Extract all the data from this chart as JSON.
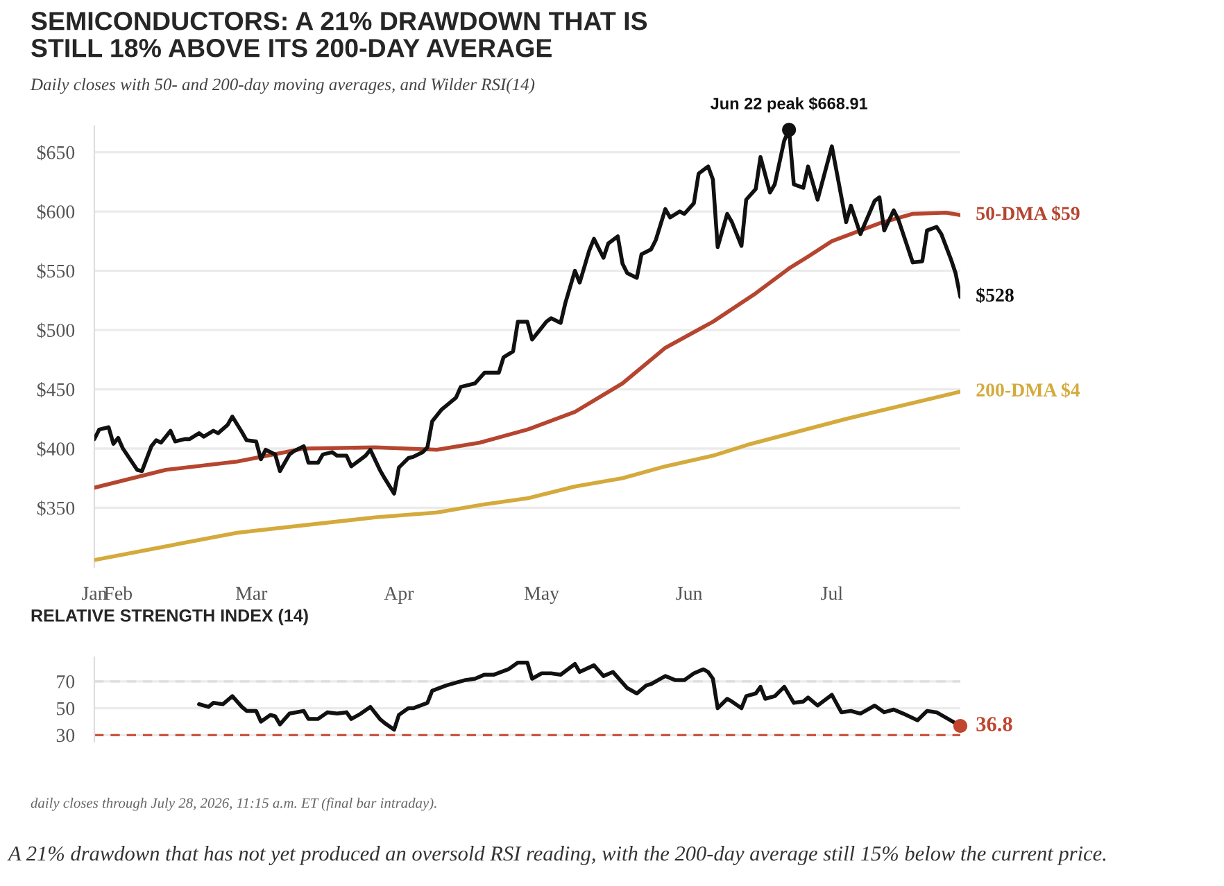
{
  "chart_data": [
    {
      "type": "line",
      "title": "SEMICONDUCTORS: A 21% DRAWDOWN THAT IS\nSTILL 18% ABOVE ITS 200-DAY AVERAGE",
      "subtitle": "Daily closes with 50- and 200-day moving averages, and Wilder RSI(14)",
      "xlim": [
        "2026-01-27",
        "2026-07-28"
      ],
      "xticks": [
        {
          "value": "2026-01-27",
          "label": "Jan"
        },
        {
          "value": "2026-02-01",
          "label": "Feb"
        },
        {
          "value": "2026-03-01",
          "label": "Mar"
        },
        {
          "value": "2026-04-01",
          "label": "Apr"
        },
        {
          "value": "2026-05-01",
          "label": "May"
        },
        {
          "value": "2026-06-01",
          "label": "Jun"
        },
        {
          "value": "2026-07-01",
          "label": "Jul"
        }
      ],
      "ylim": [
        300,
        672
      ],
      "yticks": [
        {
          "value": 350,
          "label": "$350"
        },
        {
          "value": 400,
          "label": "$400"
        },
        {
          "value": 450,
          "label": "$450"
        },
        {
          "value": 500,
          "label": "$500"
        },
        {
          "value": 550,
          "label": "$550"
        },
        {
          "value": 600,
          "label": "$600"
        },
        {
          "value": 650,
          "label": "$650"
        }
      ],
      "grid": "y",
      "legend": false,
      "line_style": "solid",
      "marker": "none",
      "series": [
        {
          "name": "200-DMA $4",
          "color": "#d4aa3c",
          "x": [
            "2026-01-27",
            "2026-02-26",
            "2026-03-27",
            "2026-04-09",
            "2026-04-19",
            "2026-04-28",
            "2026-05-08",
            "2026-05-18",
            "2026-05-27",
            "2026-06-06",
            "2026-06-14",
            "2026-07-04",
            "2026-07-28"
          ],
          "values": [
            306,
            329,
            342,
            346,
            353,
            358,
            368,
            375,
            385,
            394,
            404,
            425,
            448
          ]
        },
        {
          "name": "50-DMA $59",
          "color": "#b5452f",
          "x": [
            "2026-01-27",
            "2026-02-11",
            "2026-02-26",
            "2026-03-12",
            "2026-03-27",
            "2026-04-09",
            "2026-04-18",
            "2026-04-28",
            "2026-05-08",
            "2026-05-18",
            "2026-05-27",
            "2026-06-06",
            "2026-06-15",
            "2026-06-22",
            "2026-06-26",
            "2026-07-01",
            "2026-07-11",
            "2026-07-18",
            "2026-07-25",
            "2026-07-28"
          ],
          "values": [
            367,
            382,
            389,
            400,
            401,
            399,
            405,
            416,
            431,
            455,
            485,
            507,
            531,
            552,
            562,
            575,
            590,
            598,
            599,
            597
          ]
        },
        {
          "name": "$528",
          "color": "#111111",
          "x": [
            "2026-01-27",
            "2026-01-28",
            "2026-01-30",
            "2026-01-31",
            "2026-02-01",
            "2026-02-02",
            "2026-02-05",
            "2026-02-06",
            "2026-02-08",
            "2026-02-09",
            "2026-02-10",
            "2026-02-12",
            "2026-02-13",
            "2026-02-15",
            "2026-02-16",
            "2026-02-18",
            "2026-02-19",
            "2026-02-21",
            "2026-02-22",
            "2026-02-24",
            "2026-02-25",
            "2026-02-27",
            "2026-02-28",
            "2026-03-02",
            "2026-03-03",
            "2026-03-04",
            "2026-03-06",
            "2026-03-07",
            "2026-03-09",
            "2026-03-10",
            "2026-03-12",
            "2026-03-13",
            "2026-03-15",
            "2026-03-16",
            "2026-03-18",
            "2026-03-19",
            "2026-03-21",
            "2026-03-22",
            "2026-03-24",
            "2026-03-25",
            "2026-03-26",
            "2026-03-28",
            "2026-03-29",
            "2026-03-31",
            "2026-04-01",
            "2026-04-03",
            "2026-04-04",
            "2026-04-06",
            "2026-04-07",
            "2026-04-08",
            "2026-04-10",
            "2026-04-13",
            "2026-04-14",
            "2026-04-17",
            "2026-04-19",
            "2026-04-22",
            "2026-04-23",
            "2026-04-25",
            "2026-04-26",
            "2026-04-28",
            "2026-04-29",
            "2026-05-01",
            "2026-05-02",
            "2026-05-03",
            "2026-05-05",
            "2026-05-06",
            "2026-05-08",
            "2026-05-09",
            "2026-05-11",
            "2026-05-12",
            "2026-05-14",
            "2026-05-15",
            "2026-05-17",
            "2026-05-18",
            "2026-05-19",
            "2026-05-21",
            "2026-05-22",
            "2026-05-24",
            "2026-05-25",
            "2026-05-27",
            "2026-05-28",
            "2026-05-30",
            "2026-05-31",
            "2026-06-02",
            "2026-06-03",
            "2026-06-05",
            "2026-06-06",
            "2026-06-07",
            "2026-06-09",
            "2026-06-10",
            "2026-06-12",
            "2026-06-13",
            "2026-06-15",
            "2026-06-16",
            "2026-06-18",
            "2026-06-19",
            "2026-06-21",
            "2026-06-22",
            "2026-06-23",
            "2026-06-25",
            "2026-06-26",
            "2026-06-28",
            "2026-07-01",
            "2026-07-04",
            "2026-07-05",
            "2026-07-07",
            "2026-07-10",
            "2026-07-11",
            "2026-07-12",
            "2026-07-14",
            "2026-07-15",
            "2026-07-17",
            "2026-07-18",
            "2026-07-20",
            "2026-07-21",
            "2026-07-23",
            "2026-07-24",
            "2026-07-26",
            "2026-07-27",
            "2026-07-28"
          ],
          "values": [
            408,
            416,
            418,
            404,
            409,
            400,
            382,
            381,
            402,
            407,
            405,
            415,
            406,
            408,
            408,
            413,
            410,
            415,
            413,
            420,
            427,
            414,
            407,
            406,
            391,
            399,
            395,
            381,
            395,
            398,
            402,
            388,
            388,
            395,
            397,
            394,
            394,
            385,
            391,
            394,
            399,
            382,
            375,
            362,
            384,
            392,
            393,
            397,
            401,
            423,
            433,
            443,
            452,
            455,
            464,
            464,
            477,
            482,
            507,
            507,
            492,
            502,
            507,
            510,
            506,
            523,
            550,
            540,
            567,
            577,
            561,
            573,
            579,
            556,
            548,
            544,
            564,
            568,
            576,
            602,
            595,
            600,
            598,
            607,
            632,
            638,
            627,
            570,
            598,
            591,
            571,
            610,
            619,
            646,
            616,
            623,
            660,
            669,
            623,
            620,
            638,
            610,
            655,
            591,
            605,
            581,
            609,
            612,
            584,
            601,
            593,
            569,
            557,
            558,
            584,
            587,
            581,
            560,
            548,
            528
          ]
        },
        {
          "type": "scatter",
          "marker": "circle",
          "color": "#111111",
          "x": [
            "2026-06-22"
          ],
          "values": [
            668.91
          ]
        }
      ],
      "annotations": [
        {
          "text": "Jun 22 peak $668.91",
          "x": "2026-06-22",
          "y": 668.91
        }
      ]
    },
    {
      "type": "line",
      "title": "RELATIVE STRENGTH INDEX (14)",
      "xlim": [
        "2026-01-27",
        "2026-07-28"
      ],
      "ylim": [
        25,
        88
      ],
      "yticks": [
        30,
        50,
        70
      ],
      "tick_labels": "y",
      "grid": "y",
      "legend": false,
      "line_style": "solid",
      "marker": "none",
      "ref_lines": [
        {
          "axis": "y",
          "value": 70,
          "color": "#dddddd",
          "line_style": "dashed"
        },
        {
          "axis": "y",
          "value": 30,
          "color": "#c9553f",
          "line_style": "dashed"
        }
      ],
      "series": [
        {
          "color": "#111111",
          "x": [
            "2026-02-18",
            "2026-02-20",
            "2026-02-21",
            "2026-02-23",
            "2026-02-25",
            "2026-02-27",
            "2026-02-28",
            "2026-03-02",
            "2026-03-03",
            "2026-03-05",
            "2026-03-06",
            "2026-03-07",
            "2026-03-09",
            "2026-03-12",
            "2026-03-13",
            "2026-03-15",
            "2026-03-17",
            "2026-03-19",
            "2026-03-21",
            "2026-03-22",
            "2026-03-24",
            "2026-03-26",
            "2026-03-28",
            "2026-03-29",
            "2026-03-31",
            "2026-04-01",
            "2026-04-03",
            "2026-04-04",
            "2026-04-07",
            "2026-04-08",
            "2026-04-11",
            "2026-04-15",
            "2026-04-17",
            "2026-04-19",
            "2026-04-21",
            "2026-04-24",
            "2026-04-26",
            "2026-04-28",
            "2026-04-29",
            "2026-05-01",
            "2026-05-03",
            "2026-05-05",
            "2026-05-08",
            "2026-05-09",
            "2026-05-12",
            "2026-05-14",
            "2026-05-16",
            "2026-05-19",
            "2026-05-21",
            "2026-05-23",
            "2026-05-24",
            "2026-05-27",
            "2026-05-29",
            "2026-05-31",
            "2026-06-02",
            "2026-06-04",
            "2026-06-05",
            "2026-06-06",
            "2026-06-07",
            "2026-06-09",
            "2026-06-10",
            "2026-06-12",
            "2026-06-13",
            "2026-06-15",
            "2026-06-16",
            "2026-06-17",
            "2026-06-19",
            "2026-06-21",
            "2026-06-23",
            "2026-06-25",
            "2026-06-26",
            "2026-06-28",
            "2026-07-01",
            "2026-07-03",
            "2026-07-05",
            "2026-07-07",
            "2026-07-10",
            "2026-07-12",
            "2026-07-14",
            "2026-07-16",
            "2026-07-19",
            "2026-07-21",
            "2026-07-23",
            "2026-07-28"
          ],
          "values": [
            53,
            51,
            54,
            53,
            59,
            51,
            48,
            48,
            40,
            45,
            44,
            38,
            46,
            48,
            42,
            42,
            47,
            46,
            47,
            42,
            46,
            51,
            42,
            39,
            34,
            45,
            50,
            50,
            54,
            63,
            67,
            71,
            72,
            75,
            75,
            79,
            84,
            84,
            72,
            76,
            76,
            75,
            83,
            77,
            82,
            74,
            77,
            65,
            61,
            67,
            68,
            74,
            71,
            71,
            76,
            79,
            77,
            72,
            50,
            57,
            55,
            50,
            59,
            61,
            66,
            57,
            59,
            66,
            54,
            55,
            58,
            52,
            60,
            47,
            48,
            46,
            52,
            47,
            49,
            46,
            41,
            48,
            47,
            36.8
          ]
        },
        {
          "type": "scatter",
          "marker": "circle",
          "color": "#c0462f",
          "x": [
            "2026-07-28"
          ],
          "values": [
            36.8
          ]
        }
      ],
      "annotations": [
        {
          "text": "36.8",
          "x": "2026-07-28",
          "y": 36.8
        },
        "daily closes through July 28, 2026, 11:15 a.m. ET (final bar intraday).",
        "A 21% drawdown that has not yet produced an oversold RSI reading, with the 200-day average still 15% below the current price."
      ]
    }
  ]
}
